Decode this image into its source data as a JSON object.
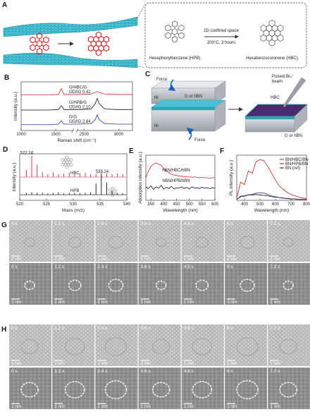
{
  "A": {
    "label": "A",
    "hpb": "Hexaphenylbenzene (HPB)",
    "hbc": "Hexabenzocoronene (HBC)",
    "arrow_top": "2D confined space",
    "arrow_bottom": "200°C, 3 hours"
  },
  "B": {
    "label": "B",
    "type": "line",
    "xlabel": "Raman shift (cm⁻¹)",
    "ylabel": "Intensity (a.u.)",
    "xlim": [
      1000,
      3200
    ],
    "axis_break": [
      1750,
      2400
    ],
    "ylim": [
      0,
      10
    ],
    "xticks": [
      1000,
      1500,
      2500,
      3000
    ],
    "x": [
      1000,
      1200,
      1400,
      1540,
      1582,
      1620,
      1750,
      2400,
      2600,
      2660,
      2690,
      2720,
      2800,
      3000,
      3200
    ],
    "series": [
      {
        "name": "G/HBC/G",
        "ratio": "I2D/IG 0.42",
        "color": "#d62728",
        "values": [
          7.3,
          7.3,
          7.3,
          7.4,
          8.6,
          7.4,
          7.4,
          7.4,
          7.5,
          7.8,
          8.0,
          7.8,
          7.5,
          7.4,
          7.4
        ]
      },
      {
        "name": "G/HPB/G",
        "ratio": "I2D/IG 2.10",
        "color": "#111111",
        "values": [
          4.2,
          4.2,
          4.2,
          4.3,
          5.1,
          4.3,
          4.3,
          4.3,
          4.4,
          5.5,
          6.6,
          5.5,
          4.4,
          4.3,
          4.3
        ]
      },
      {
        "name": "G/G",
        "ratio": "I2D/IG 2.84",
        "color": "#2234b8",
        "values": [
          1.2,
          1.2,
          1.2,
          1.3,
          2.0,
          1.3,
          1.3,
          1.3,
          1.4,
          2.2,
          3.2,
          2.2,
          1.4,
          1.3,
          1.3
        ]
      }
    ]
  },
  "C": {
    "label": "C",
    "force_top": "Force",
    "force_bottom": "Force",
    "g_hbn_left": "G or hBN",
    "ni_top": "Ni",
    "ni_bottom": "Ni",
    "beam_1": "Pulsed Bi₃⁺",
    "beam_2": "beam",
    "hbc": "HBC",
    "g_hbn_right": "G or hBN"
  },
  "D": {
    "label": "D",
    "type": "stick",
    "xlabel": "Mass (m/z)",
    "ylabel": "Intensity (a.u.)",
    "xlim": [
      520,
      540
    ],
    "ylim": [
      0,
      10
    ],
    "xticks": [
      520,
      525,
      530,
      535,
      540
    ],
    "series": [
      {
        "name": "HBC",
        "peak_label": "522.24",
        "color": "#d62728",
        "baseline": 5,
        "x": [
          521.24,
          522.24,
          523.24,
          524.24,
          525.24,
          526.24,
          527.24,
          528.24,
          529.24,
          530.24,
          531.24,
          532.24,
          533.24,
          534.24,
          535.24,
          536.24,
          537.24,
          538.24,
          539.24
        ],
        "values": [
          6.5,
          9.6,
          7.6,
          6.1,
          5.6,
          6.0,
          5.6,
          5.7,
          6.0,
          5.6,
          5.8,
          5.9,
          5.6,
          5.7,
          6.0,
          5.8,
          5.6,
          5.8,
          5.6
        ]
      },
      {
        "name": "HPB",
        "peak_label": "535.24",
        "color": "#111111",
        "baseline": 1.2,
        "x": [
          521.24,
          522.24,
          523.24,
          524.24,
          525.24,
          526.24,
          527.24,
          528.24,
          529.24,
          530.24,
          531.24,
          532.24,
          533.24,
          534.24,
          535.24,
          536.24,
          537.24,
          538.24,
          539.24
        ],
        "values": [
          1.6,
          1.7,
          1.6,
          1.6,
          1.5,
          1.6,
          1.7,
          1.5,
          1.6,
          1.6,
          1.5,
          1.6,
          1.7,
          3.6,
          5.6,
          3.8,
          2.0,
          1.6,
          1.5
        ]
      }
    ]
  },
  "E": {
    "label": "E",
    "type": "line",
    "xlabel": "Wavelength (nm)",
    "ylabel": "Absorption intensity (a.u.)",
    "xlim": [
      330,
      600
    ],
    "ylim": [
      0,
      10
    ],
    "xticks": [
      350,
      400,
      450,
      500,
      550,
      600
    ],
    "x": [
      330,
      340,
      350,
      360,
      370,
      380,
      390,
      400,
      410,
      420,
      430,
      440,
      450,
      460,
      470,
      480,
      490,
      500,
      510,
      520,
      530,
      540,
      550,
      560,
      570,
      580,
      590,
      600
    ],
    "series": [
      {
        "name": "hBN/HBC/hBN",
        "color": "#e02020",
        "values": [
          5.0,
          6.5,
          7.5,
          8.0,
          8.3,
          8.0,
          7.8,
          7.0,
          6.5,
          6.2,
          5.8,
          5.6,
          5.5,
          5.4,
          5.3,
          5.3,
          5.2,
          5.2,
          5.1,
          5.2,
          5.1,
          5.0,
          5.1,
          5.0,
          5.0,
          4.9,
          5.0,
          5.0
        ]
      },
      {
        "name": "hBN/HPB/hBN",
        "color": "#111111",
        "values": [
          3.0,
          2.6,
          3.2,
          2.4,
          3.0,
          2.7,
          3.3,
          2.5,
          2.9,
          2.6,
          3.1,
          2.5,
          2.8,
          2.7,
          3.0,
          2.6,
          2.9,
          2.5,
          3.0,
          2.7,
          2.8,
          2.6,
          2.9,
          2.7,
          2.8,
          2.6,
          2.8,
          2.7
        ]
      }
    ]
  },
  "F": {
    "label": "F",
    "type": "line",
    "xlabel": "Wavelength (nm)",
    "ylabel": "PL intensity (a.u.)",
    "xlim": [
      350,
      800
    ],
    "ylim": [
      0,
      10
    ],
    "xticks": [
      400,
      500,
      600,
      700,
      800
    ],
    "legend": "upper-right",
    "x": [
      350,
      375,
      400,
      425,
      450,
      475,
      500,
      525,
      550,
      575,
      600,
      625,
      650,
      675,
      700,
      725,
      750,
      775,
      800
    ],
    "series": [
      {
        "name": "BN/HBC/BN",
        "color": "#c81e1e",
        "values": [
          0.5,
          4.0,
          3.5,
          6.5,
          6.0,
          8.6,
          9.0,
          8.8,
          7.5,
          6.0,
          4.5,
          3.2,
          2.4,
          1.8,
          1.3,
          1.0,
          0.7,
          0.5,
          0.4
        ]
      },
      {
        "name": "BN/HPB/BN",
        "color": "#1f2f9a",
        "values": [
          0.2,
          0.8,
          0.9,
          1.2,
          1.3,
          1.6,
          1.7,
          1.6,
          1.3,
          1.0,
          0.8,
          0.6,
          0.5,
          0.4,
          0.3,
          0.3,
          0.2,
          0.2,
          0.2
        ]
      },
      {
        "name": "BN (ref)",
        "color": "#111111",
        "values": [
          0.2,
          0.9,
          1.0,
          1.2,
          1.2,
          1.3,
          1.2,
          1.1,
          1.0,
          0.8,
          0.7,
          0.6,
          0.5,
          0.4,
          0.3,
          0.3,
          0.2,
          0.2,
          0.2
        ]
      }
    ]
  },
  "G": {
    "label": "G",
    "times": [
      "0 s",
      "1.2 s",
      "2.4 s",
      "3.6 s",
      "4.8 s",
      "6 s",
      "7.2 s"
    ],
    "scale": "1 nm"
  },
  "H": {
    "label": "H",
    "times": [
      "0 s",
      "1.2 s",
      "2.4 s",
      "3.6 s",
      "4.8 s",
      "6 s",
      "7.2 s"
    ],
    "scale": "1 nm"
  }
}
